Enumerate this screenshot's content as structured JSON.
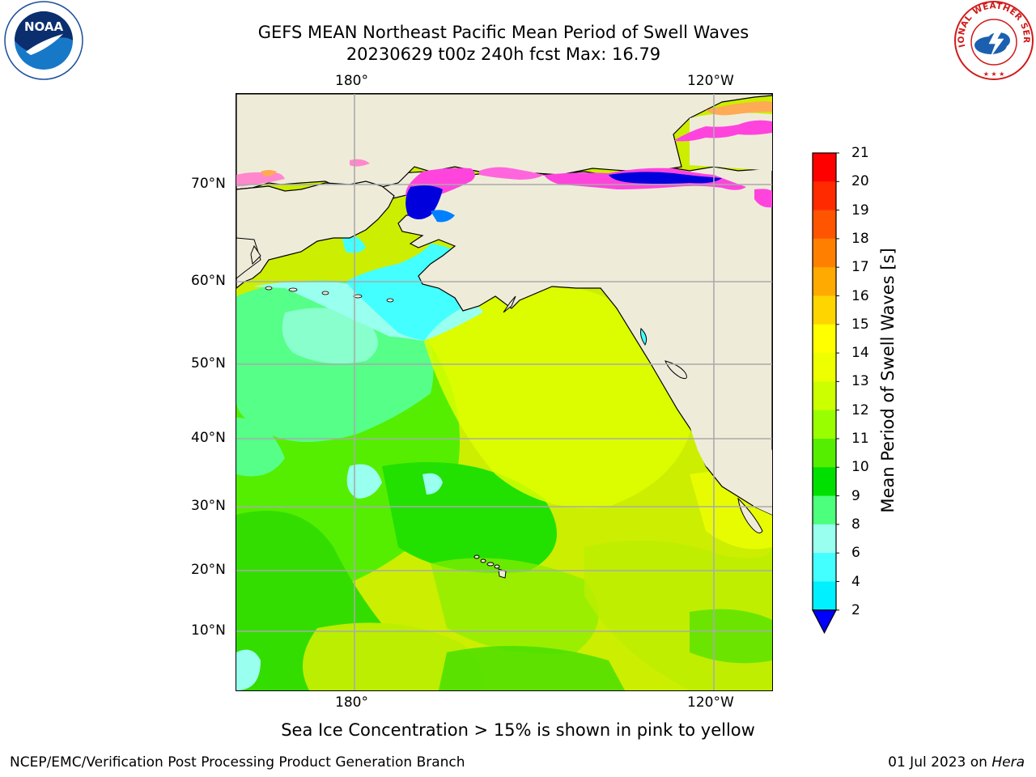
{
  "header": {
    "title_line1": "GEFS MEAN Northeast Pacific Mean Period of Swell Waves",
    "title_line2": "20230629 t00z 240h fcst   Max: 16.79"
  },
  "logos": {
    "left": {
      "icon": "noaa-logo-icon",
      "text": "NOAA"
    },
    "right": {
      "icon": "national-weather-service-logo-icon",
      "text": "NATIONAL WEATHER SERVICE"
    }
  },
  "map": {
    "region": "Northeast Pacific",
    "longitude_labels": [
      "180°",
      "120°W"
    ],
    "latitude_labels": [
      "70°N",
      "60°N",
      "50°N",
      "40°N",
      "30°N",
      "20°N",
      "10°N"
    ],
    "colors": {
      "land": "#eeecd9",
      "grid": "#aaaaaa",
      "coast": "#000000"
    },
    "field_summary": {
      "max": 16.79,
      "northwest_open_ocean": "8-10 s",
      "central_and_east_pacific": "11-14 s",
      "bering_sea": "4-8 s",
      "arctic_coast": "2-4 s with sea ice"
    }
  },
  "colorbar": {
    "label": "Mean Period of Swell Waves [s]",
    "ticks": [
      "21",
      "20",
      "19",
      "18",
      "17",
      "16",
      "15",
      "14",
      "13",
      "12",
      "11",
      "10",
      "9",
      "8",
      "6",
      "4",
      "2"
    ],
    "colors": [
      "#ff0000",
      "#ff2a00",
      "#ff5500",
      "#ff8000",
      "#ffaa00",
      "#ffd500",
      "#ffff00",
      "#eeff00",
      "#ccff00",
      "#99ff00",
      "#55ee00",
      "#00e000",
      "#4cff7c",
      "#99ffee",
      "#44ffff",
      "#00f0ff",
      "#0080ff",
      "#0000ff"
    ]
  },
  "footer": {
    "note": "Sea Ice Concentration > 15% is shown in pink to yellow",
    "credit": "NCEP/EMC/Verification Post Processing Product Generation Branch",
    "date": "01 Jul 2023 on ",
    "machine": "Hera"
  }
}
